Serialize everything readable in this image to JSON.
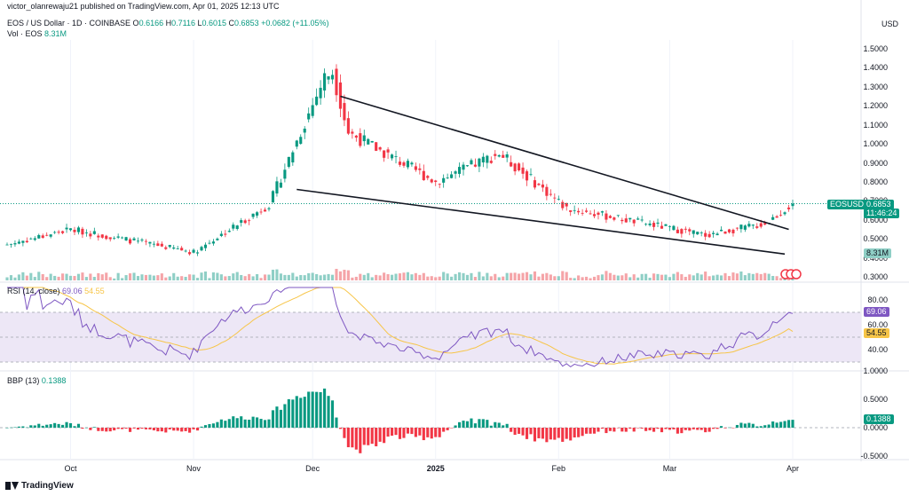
{
  "publisher_line": "victor_olanrewaju21 published on TradingView.com, Apr 01, 2025 12:13 UTC",
  "currency": "USD",
  "symbol_line": {
    "name": "EOS / US Dollar · 1D · COINBASE",
    "o_label": "O",
    "o_value": "0.6166",
    "h_label": "H",
    "h_value": "0.7116",
    "l_label": "L",
    "l_value": "0.6015",
    "c_label": "C",
    "c_value": "0.6853",
    "change": "+0.0682 (+11.05%)"
  },
  "volume_line": {
    "label": "Vol · EOS",
    "value": "8.31M"
  },
  "price_axis_labels": [
    "1.5000",
    "1.4000",
    "1.3000",
    "1.2000",
    "1.1000",
    "1.0000",
    "0.9000",
    "0.8000",
    "0.7000",
    "0.6000",
    "0.5000",
    "0.4000",
    "0.3000"
  ],
  "price_tag": {
    "symbol": "EOSUSD",
    "value": "0.6853",
    "countdown": "11:46:24"
  },
  "volume_tag": "8.31M",
  "rsi": {
    "label": "RSI (14, close)",
    "value": "69.06",
    "ma_value": "54.55",
    "axis_labels": [
      "80.00",
      "60.00",
      "40.00"
    ]
  },
  "bbp": {
    "label": "BBP (13)",
    "value": "0.1388",
    "axis_labels": [
      "1.0000",
      "0.5000",
      "0.0000",
      "-0.5000"
    ]
  },
  "x_labels": [
    "Oct",
    "Nov",
    "Dec",
    "2025",
    "Feb",
    "Mar",
    "Apr"
  ],
  "footer": "TradingView",
  "colors": {
    "up": "#089981",
    "down": "#f23645",
    "rsi_line": "#7e57c2",
    "rsi_ma": "#f7c548",
    "rsi_band": "#ede7f6",
    "trend": "#131722",
    "vol_up": "#8fcfc6",
    "vol_down": "#f5a4a8"
  },
  "chart_data": {
    "type": "candlestick",
    "interval": "1D",
    "x_start": "2024-09-15",
    "x_end": "2025-04-01",
    "price_range": [
      0.3,
      1.55
    ],
    "key_points": [
      {
        "date": "2024-09-15",
        "close": 0.47
      },
      {
        "date": "2024-10-01",
        "close": 0.55
      },
      {
        "date": "2024-11-01",
        "close": 0.43
      },
      {
        "date": "2024-11-20",
        "close": 0.68
      },
      {
        "date": "2024-12-04",
        "close": 1.35
      },
      {
        "date": "2024-12-06",
        "close": 1.38
      },
      {
        "date": "2024-12-10",
        "close": 1.06
      },
      {
        "date": "2025-01-01",
        "close": 0.8
      },
      {
        "date": "2025-01-17",
        "close": 0.95
      },
      {
        "date": "2025-02-03",
        "close": 0.66
      },
      {
        "date": "2025-03-10",
        "close": 0.52
      },
      {
        "date": "2025-03-25",
        "close": 0.58
      },
      {
        "date": "2025-04-01",
        "close": 0.6853
      }
    ],
    "trendlines": [
      {
        "from": {
          "date": "2024-12-08",
          "price": 1.25
        },
        "to": {
          "date": "2025-03-31",
          "price": 0.55
        }
      },
      {
        "from": {
          "date": "2024-11-27",
          "price": 0.76
        },
        "to": {
          "date": "2025-03-30",
          "price": 0.42
        }
      }
    ],
    "rsi_value": 69.06,
    "rsi_ma_value": 54.55,
    "bbp_value": 0.1388
  }
}
